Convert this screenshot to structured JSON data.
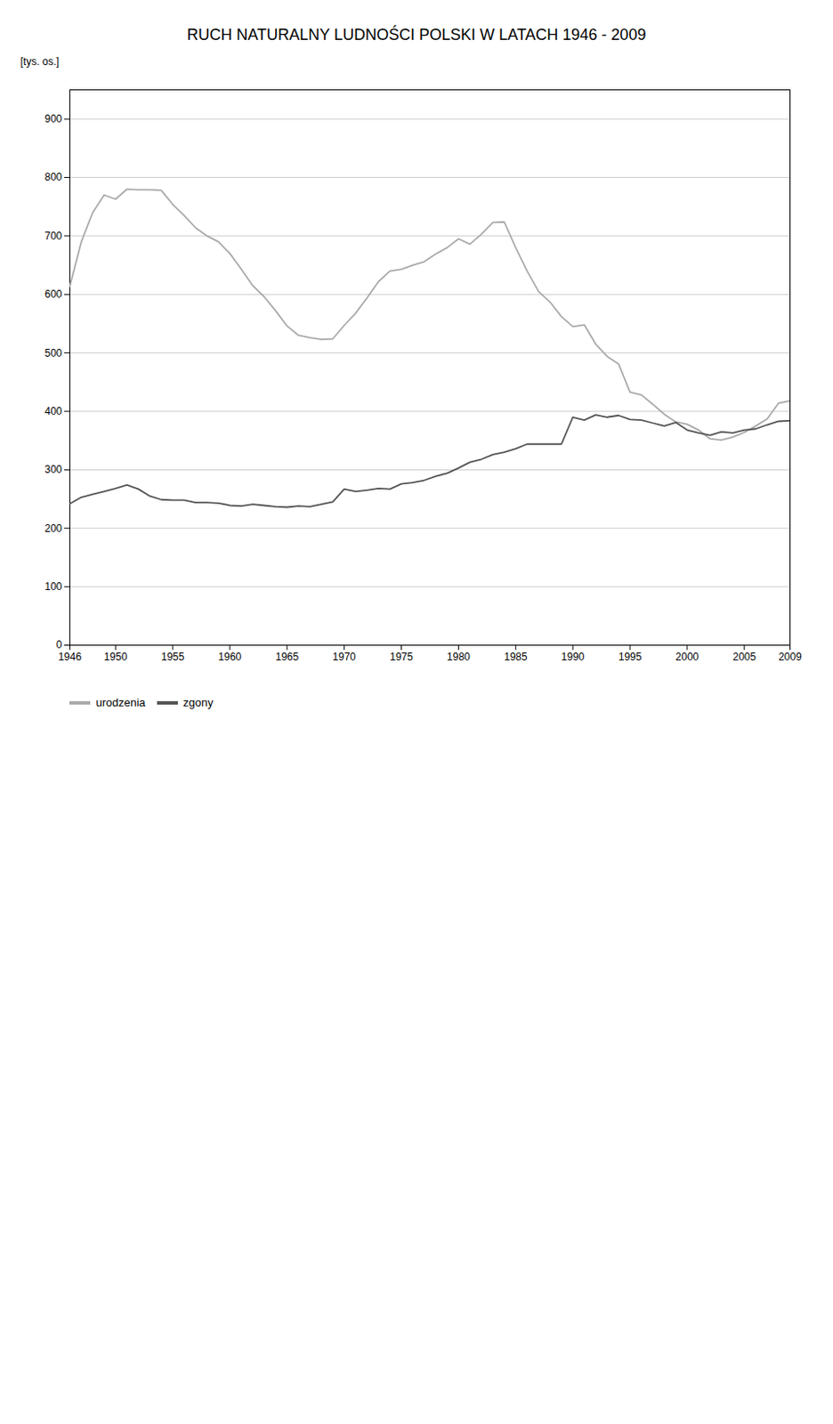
{
  "chart_data": {
    "type": "line",
    "title": "RUCH NATURALNY LUDNOŚCI POLSKI W LATACH 1946 - 2009",
    "ylabel": "[tys. os.]",
    "x": [
      1946,
      1947,
      1948,
      1949,
      1950,
      1951,
      1952,
      1953,
      1954,
      1955,
      1956,
      1957,
      1958,
      1959,
      1960,
      1961,
      1962,
      1963,
      1964,
      1965,
      1966,
      1967,
      1968,
      1969,
      1970,
      1971,
      1972,
      1973,
      1974,
      1975,
      1976,
      1977,
      1978,
      1979,
      1980,
      1981,
      1982,
      1983,
      1984,
      1985,
      1986,
      1987,
      1988,
      1989,
      1990,
      1991,
      1992,
      1993,
      1994,
      1995,
      1996,
      1997,
      1998,
      1999,
      2000,
      2001,
      2002,
      2003,
      2004,
      2005,
      2006,
      2007,
      2008,
      2009
    ],
    "series": [
      {
        "name": "urodzenia",
        "color": "#aaaaaa",
        "values": [
          614,
          690,
          740,
          770,
          763,
          780,
          779,
          779,
          778,
          754,
          735,
          714,
          700,
          690,
          670,
          643,
          615,
          596,
          572,
          546,
          530,
          526,
          523,
          524,
          547,
          568,
          594,
          622,
          640,
          643,
          650,
          656,
          669,
          680,
          695,
          686,
          703,
          723,
          724,
          680,
          640,
          605,
          587,
          562,
          545,
          548,
          515,
          494,
          481,
          433,
          428,
          412,
          395,
          382,
          378,
          368,
          353,
          351,
          356,
          364,
          375,
          387,
          414,
          418
        ]
      },
      {
        "name": "zgony",
        "color": "#555555",
        "values": [
          242,
          253,
          258,
          263,
          268,
          274,
          267,
          255,
          249,
          248,
          248,
          244,
          244,
          243,
          239,
          238,
          241,
          239,
          237,
          236,
          238,
          237,
          241,
          245,
          267,
          263,
          265,
          268,
          267,
          276,
          278,
          282,
          289,
          294,
          303,
          313,
          318,
          326,
          330,
          336,
          344,
          344,
          344,
          344,
          390,
          385,
          394,
          390,
          393,
          386,
          385,
          380,
          375,
          381,
          368,
          363,
          359,
          365,
          363,
          368,
          370,
          377,
          383,
          384
        ]
      }
    ],
    "xlim": [
      1946,
      2009
    ],
    "ylim": [
      0,
      950
    ],
    "xticks": [
      1946,
      1950,
      1955,
      1960,
      1965,
      1970,
      1975,
      1980,
      1985,
      1990,
      1995,
      2000,
      2005,
      2009
    ],
    "yticks": [
      0,
      100,
      200,
      300,
      400,
      500,
      600,
      700,
      800,
      900
    ],
    "grid": "y",
    "legend": "bottom"
  }
}
